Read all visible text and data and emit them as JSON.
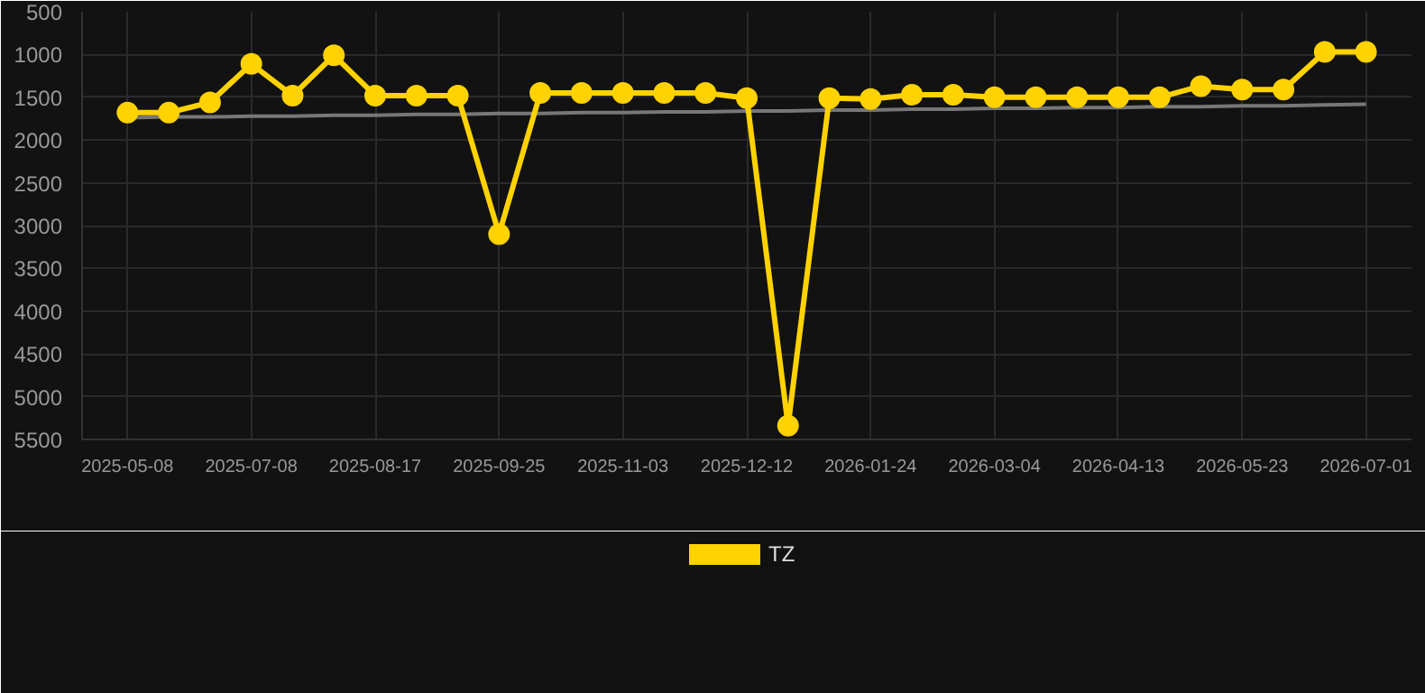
{
  "chart_data": {
    "type": "line",
    "categories": [
      "2025-05-08",
      null,
      null,
      "2025-07-08",
      null,
      null,
      "2025-08-17",
      null,
      null,
      "2025-09-25",
      null,
      null,
      "2025-11-03",
      null,
      null,
      "2025-12-12",
      null,
      null,
      "2026-01-24",
      null,
      null,
      "2026-03-04",
      null,
      null,
      "2026-04-13",
      null,
      null,
      "2026-05-23",
      null,
      null,
      "2026-07-01"
    ],
    "series": [
      {
        "name": "TZ",
        "color": "#ffd200",
        "values": [
          1680,
          1680,
          1560,
          1110,
          1480,
          1010,
          1480,
          1480,
          1480,
          3100,
          1450,
          1450,
          1450,
          1450,
          1450,
          1510,
          5340,
          1510,
          1520,
          1470,
          1470,
          1500,
          1500,
          1500,
          1500,
          1500,
          1370,
          1410,
          1410,
          970,
          970
        ]
      },
      {
        "type": "line",
        "color": "#777777",
        "marker": "none",
        "values": [
          1740,
          1730,
          1730,
          1720,
          1720,
          1710,
          1710,
          1700,
          1700,
          1690,
          1690,
          1680,
          1680,
          1670,
          1670,
          1660,
          1660,
          1650,
          1650,
          1640,
          1640,
          1630,
          1630,
          1620,
          1620,
          1610,
          1610,
          1600,
          1600,
          1590,
          1580
        ]
      }
    ],
    "ylim": [
      5500,
      500
    ],
    "yticks": [
      500,
      1000,
      1500,
      2000,
      2500,
      3000,
      3500,
      4000,
      4500,
      5000,
      5500
    ],
    "grid": true,
    "legend": "bottom",
    "marker": "circle",
    "line_style": "solid"
  }
}
